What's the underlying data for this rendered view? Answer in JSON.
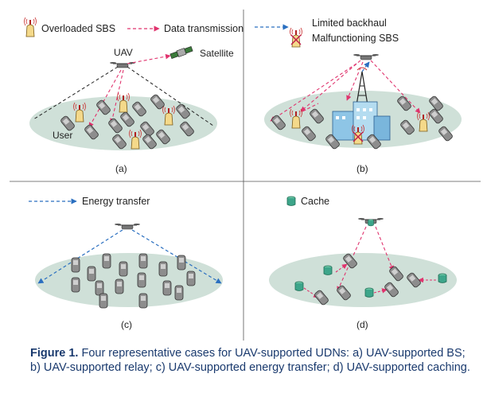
{
  "panels": [
    {
      "id": "a",
      "label": "(a)",
      "legend": [
        "Overloaded SBS",
        "Data transmission"
      ],
      "labels": {
        "uav": "UAV",
        "satellite": "Satellite",
        "user": "User"
      }
    },
    {
      "id": "b",
      "label": "(b)",
      "legend": [
        "Limited backhaul",
        "Malfunctioning SBS"
      ]
    },
    {
      "id": "c",
      "label": "(c)",
      "legend": [
        "Energy transfer"
      ]
    },
    {
      "id": "d",
      "label": "(d)",
      "legend": [
        "Cache"
      ]
    }
  ],
  "caption": {
    "label": "Figure 1.",
    "text": "Four representative cases for UAV-supported UDNs: a) UAV-supported BS; b) UAV-supported relay; c) UAV-supported energy transfer; d) UAV-supported caching."
  },
  "colors": {
    "ground": "#cfe0d8",
    "data": "#e0346e",
    "backhaul": "#2a6fc0",
    "energy": "#2a6fc0",
    "cache": "#3da58a",
    "sbs": "#f4d98a",
    "phone": "#8a8a8a",
    "divider": "#555555",
    "caption": "#1a3a6e"
  },
  "icons": [
    "sbs-tower-icon",
    "uav-icon",
    "satellite-icon",
    "phone-icon",
    "building-icon",
    "cache-icon",
    "macro-tower-icon"
  ]
}
